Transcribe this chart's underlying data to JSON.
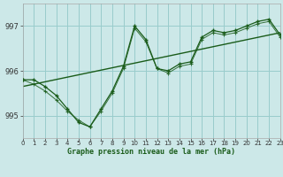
{
  "title": "Graphe pression niveau de la mer (hPa)",
  "bg_color": "#cce8e8",
  "grid_color": "#99cccc",
  "line_color": "#1a5c1a",
  "text_color": "#1a5c1a",
  "x_min": 0,
  "x_max": 23,
  "y_min": 994.5,
  "y_max": 997.5,
  "y_ticks": [
    995,
    996,
    997
  ],
  "x_ticks": [
    0,
    1,
    2,
    3,
    4,
    5,
    6,
    7,
    8,
    9,
    10,
    11,
    12,
    13,
    14,
    15,
    16,
    17,
    18,
    19,
    20,
    21,
    22,
    23
  ],
  "series1_x": [
    0,
    1,
    2,
    3,
    4,
    5,
    6,
    7,
    8,
    9,
    10,
    11,
    12,
    13,
    14,
    15,
    16,
    17,
    18,
    19,
    20,
    21,
    22,
    23
  ],
  "series1_y": [
    995.8,
    995.8,
    995.65,
    995.45,
    995.15,
    994.85,
    994.75,
    995.15,
    995.55,
    996.1,
    997.0,
    996.7,
    996.05,
    996.0,
    996.15,
    996.2,
    996.75,
    996.9,
    996.85,
    996.9,
    997.0,
    997.1,
    997.15,
    996.8
  ],
  "series2_x": [
    0,
    1,
    2,
    3,
    4,
    5,
    6,
    7,
    8,
    9,
    10,
    11,
    12,
    13,
    14,
    15,
    16,
    17,
    18,
    19,
    20,
    21,
    22,
    23
  ],
  "series2_y": [
    995.8,
    995.7,
    995.55,
    995.35,
    995.1,
    994.9,
    994.75,
    995.1,
    995.5,
    996.05,
    996.95,
    996.65,
    996.05,
    995.95,
    996.1,
    996.15,
    996.7,
    996.85,
    996.8,
    996.85,
    996.95,
    997.05,
    997.1,
    996.75
  ],
  "trend_x": [
    0,
    23
  ],
  "trend_y": [
    995.65,
    996.85
  ]
}
